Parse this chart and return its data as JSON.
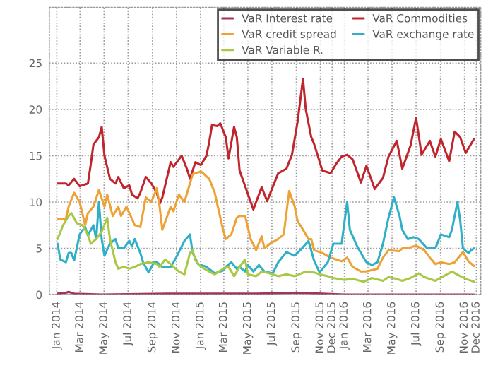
{
  "chart_data": {
    "type": "line",
    "xlim": [
      "2013-12-13",
      "2016-12-12"
    ],
    "xticks": [
      {
        "value": "2014-01",
        "label": "Jan 2014"
      },
      {
        "value": "2014-03",
        "label": "Mar 2014"
      },
      {
        "value": "2014-05",
        "label": "May 2014"
      },
      {
        "value": "2014-07",
        "label": "Jul 2014"
      },
      {
        "value": "2014-09",
        "label": "Sep 2014"
      },
      {
        "value": "2014-11",
        "label": "Nov 2014"
      },
      {
        "value": "2015-01",
        "label": "Jan 2015"
      },
      {
        "value": "2015-03",
        "label": "Mar 2015"
      },
      {
        "value": "2015-05",
        "label": "May 2015"
      },
      {
        "value": "2015-07",
        "label": "Jul 2015"
      },
      {
        "value": "2015-09",
        "label": "Sep 2015"
      },
      {
        "value": "2015-11",
        "label": "Nov 2015"
      },
      {
        "value": "2015-12",
        "label": "Dec 2015"
      },
      {
        "value": "2016-01",
        "label": "Jan 2016"
      },
      {
        "value": "2016-03",
        "label": "Mar 2016"
      },
      {
        "value": "2016-05",
        "label": "May 2016"
      },
      {
        "value": "2016-07",
        "label": "Jul 2016"
      },
      {
        "value": "2016-09",
        "label": "Sep 2016"
      },
      {
        "value": "2016-11",
        "label": "Nov 2016"
      },
      {
        "value": "2016-12",
        "label": "Dec 2016"
      }
    ],
    "ylim": [
      0,
      31
    ],
    "yticks": [
      0,
      5,
      10,
      15,
      20,
      25
    ],
    "grid": true,
    "legend": "top right",
    "marker": "none",
    "line_style": "solid",
    "series": [
      {
        "name": "VaR Interest rate",
        "color": "#a3325e",
        "x": [
          "2014-01-03",
          "2014-01-24",
          "2014-01-31",
          "2014-02-14",
          "2014-04-25",
          "2014-10-10",
          "2015-05-22",
          "2015-09-11",
          "2016-01-01",
          "2016-11-25"
        ],
        "values": [
          0.1,
          0.2,
          0.3,
          0.1,
          0,
          0.1,
          0.1,
          0.2,
          0,
          0
        ]
      },
      {
        "name": "VaR Commodities",
        "color": "#c0262d",
        "x": [
          "2014-01-03",
          "2014-01-24",
          "2014-01-31",
          "2014-02-14",
          "2014-02-28",
          "2014-03-21",
          "2014-03-28",
          "2014-04-04",
          "2014-04-18",
          "2014-04-25",
          "2014-05-02",
          "2014-05-16",
          "2014-05-30",
          "2014-06-06",
          "2014-06-20",
          "2014-07-04",
          "2014-07-11",
          "2014-07-25",
          "2014-08-01",
          "2014-08-15",
          "2014-08-29",
          "2014-09-12",
          "2014-09-19",
          "2014-09-26",
          "2014-10-17",
          "2014-10-24",
          "2014-11-14",
          "2014-11-28",
          "2014-12-05",
          "2014-12-19",
          "2015-01-02",
          "2015-01-16",
          "2015-01-23",
          "2015-01-30",
          "2015-02-13",
          "2015-02-20",
          "2015-03-06",
          "2015-03-13",
          "2015-03-27",
          "2015-04-03",
          "2015-04-10",
          "2015-05-15",
          "2015-06-05",
          "2015-06-19",
          "2015-07-17",
          "2015-08-07",
          "2015-08-21",
          "2015-09-04",
          "2015-09-18",
          "2015-09-25",
          "2015-10-09",
          "2015-10-16",
          "2015-11-06",
          "2015-11-27",
          "2015-12-11",
          "2015-12-25",
          "2016-01-08",
          "2016-01-22",
          "2016-02-12",
          "2016-02-26",
          "2016-03-18",
          "2016-04-08",
          "2016-04-22",
          "2016-05-13",
          "2016-05-27",
          "2016-06-17",
          "2016-07-01",
          "2016-07-15",
          "2016-08-05",
          "2016-08-19",
          "2016-09-02",
          "2016-09-23",
          "2016-10-07",
          "2016-10-21",
          "2016-11-04",
          "2016-11-11",
          "2016-11-25"
        ],
        "values": [
          12,
          12,
          11.8,
          12.5,
          11.7,
          12,
          14,
          16.2,
          17,
          18.1,
          15,
          12.5,
          12,
          12.7,
          11.5,
          11.8,
          10.8,
          10.4,
          11,
          12.7,
          12,
          11,
          9.8,
          10.5,
          14.3,
          13.8,
          15,
          13.5,
          12.5,
          14.3,
          14,
          15,
          16.5,
          18.3,
          18.2,
          18.5,
          17,
          14.7,
          18.1,
          17,
          13.4,
          9.2,
          11.6,
          10.1,
          13.1,
          13.6,
          15.1,
          18.6,
          23.3,
          20,
          17,
          16.3,
          13.4,
          13.1,
          14.1,
          14.9,
          15.1,
          14.6,
          12.1,
          13.9,
          11.4,
          12.6,
          14.9,
          16.6,
          13.6,
          16.1,
          19.1,
          15.1,
          16.6,
          14.9,
          16.8,
          14.4,
          17.6,
          17,
          15.3,
          15.8,
          16.8
        ]
      },
      {
        "name": "VaR credit spread",
        "color": "#eea236",
        "x": [
          "2014-01-03",
          "2014-01-24",
          "2014-01-31",
          "2014-02-14",
          "2014-02-28",
          "2014-03-14",
          "2014-03-21",
          "2014-04-04",
          "2014-04-18",
          "2014-05-02",
          "2014-05-09",
          "2014-05-23",
          "2014-06-06",
          "2014-06-13",
          "2014-06-27",
          "2014-07-18",
          "2014-08-01",
          "2014-08-15",
          "2014-08-29",
          "2014-09-12",
          "2014-09-19",
          "2014-09-26",
          "2014-10-17",
          "2014-10-24",
          "2014-11-07",
          "2014-11-21",
          "2014-12-05",
          "2014-12-12",
          "2015-01-02",
          "2015-01-23",
          "2015-02-06",
          "2015-02-27",
          "2015-03-06",
          "2015-03-20",
          "2015-04-03",
          "2015-04-10",
          "2015-04-24",
          "2015-05-08",
          "2015-05-22",
          "2015-06-05",
          "2015-06-12",
          "2015-06-26",
          "2015-07-17",
          "2015-07-31",
          "2015-08-14",
          "2015-08-28",
          "2015-09-04",
          "2015-09-18",
          "2015-10-02",
          "2015-10-09",
          "2015-10-16",
          "2015-11-06",
          "2015-11-27",
          "2015-12-11",
          "2015-12-25",
          "2016-01-08",
          "2016-01-22",
          "2016-02-12",
          "2016-02-26",
          "2016-03-25",
          "2016-04-08",
          "2016-04-22",
          "2016-05-20",
          "2016-05-27",
          "2016-06-17",
          "2016-07-01",
          "2016-07-22",
          "2016-08-05",
          "2016-08-19",
          "2016-09-02",
          "2016-09-23",
          "2016-10-07",
          "2016-10-28",
          "2016-11-11",
          "2016-11-25"
        ],
        "values": [
          8.2,
          8.2,
          9.5,
          11,
          10,
          7.5,
          8.8,
          9.5,
          11.3,
          9.5,
          10.8,
          8.5,
          9.5,
          8.5,
          9.5,
          7.5,
          7.3,
          10.5,
          10,
          11.5,
          9.5,
          7,
          9.5,
          9,
          10.8,
          10,
          12,
          13,
          13.3,
          12.5,
          11,
          7,
          6,
          6.5,
          8.3,
          8.5,
          8.5,
          6,
          4.8,
          6.3,
          5,
          5.5,
          6,
          6.5,
          11.2,
          9.5,
          8,
          7,
          6,
          6,
          4.8,
          4.5,
          4,
          3.8,
          3.6,
          4,
          3,
          2.5,
          2.5,
          2.8,
          4,
          4.8,
          4.7,
          5,
          5.1,
          5.3,
          4.8,
          4,
          3.3,
          3.5,
          3.3,
          3.5,
          4.6,
          3.6,
          3.1
        ]
      },
      {
        "name": "VaR exchange rate",
        "color": "#2fb0c6",
        "x": [
          "2014-01-03",
          "2014-01-10",
          "2014-01-24",
          "2014-01-31",
          "2014-02-07",
          "2014-02-14",
          "2014-02-28",
          "2014-03-14",
          "2014-03-21",
          "2014-04-04",
          "2014-04-11",
          "2014-04-18",
          "2014-04-25",
          "2014-05-02",
          "2014-05-16",
          "2014-05-30",
          "2014-06-06",
          "2014-06-20",
          "2014-07-04",
          "2014-07-11",
          "2014-07-18",
          "2014-08-01",
          "2014-08-08",
          "2014-08-22",
          "2014-09-05",
          "2014-09-12",
          "2014-09-26",
          "2014-10-17",
          "2014-10-31",
          "2014-11-21",
          "2014-12-05",
          "2014-12-12",
          "2014-12-26",
          "2015-01-16",
          "2015-02-06",
          "2015-02-27",
          "2015-03-06",
          "2015-03-20",
          "2015-04-03",
          "2015-04-10",
          "2015-04-24",
          "2015-05-01",
          "2015-05-15",
          "2015-05-29",
          "2015-06-12",
          "2015-07-03",
          "2015-07-17",
          "2015-08-07",
          "2015-08-28",
          "2015-09-11",
          "2015-10-02",
          "2015-10-16",
          "2015-10-30",
          "2015-11-20",
          "2015-12-04",
          "2015-12-25",
          "2016-01-08",
          "2016-01-15",
          "2016-02-05",
          "2016-02-26",
          "2016-03-11",
          "2016-03-25",
          "2016-04-08",
          "2016-04-22",
          "2016-05-06",
          "2016-05-20",
          "2016-05-27",
          "2016-06-10",
          "2016-06-24",
          "2016-07-08",
          "2016-07-29",
          "2016-08-19",
          "2016-09-02",
          "2016-09-23",
          "2016-09-30",
          "2016-10-14",
          "2016-10-21",
          "2016-10-28",
          "2016-11-11",
          "2016-11-18",
          "2016-11-25"
        ],
        "values": [
          5.5,
          3.8,
          3.5,
          4.5,
          4.5,
          3.7,
          6.5,
          7.3,
          6.4,
          7.5,
          6,
          10,
          6,
          4.2,
          5.5,
          6,
          5,
          5,
          5.8,
          5.2,
          6,
          4.5,
          3.5,
          2.4,
          3.5,
          3.5,
          3,
          3,
          4,
          5.8,
          6.5,
          4.5,
          3.3,
          3,
          2.3,
          2.6,
          3,
          3.5,
          2.8,
          3,
          2.5,
          3.2,
          2.5,
          3.2,
          2.5,
          2.3,
          3.5,
          4.6,
          4.2,
          4.8,
          5.8,
          3.7,
          2.4,
          3.5,
          5.5,
          5.5,
          10,
          7,
          5,
          3.5,
          3.2,
          3.5,
          5.5,
          8.3,
          10.5,
          8.5,
          7,
          6,
          6.2,
          6,
          5,
          5,
          6.5,
          6.2,
          7,
          10,
          8,
          5,
          4.5,
          4.8,
          5
        ]
      },
      {
        "name": "VaR Variable R.",
        "color": "#a9c845",
        "x": [
          "2014-01-03",
          "2014-01-17",
          "2014-01-31",
          "2014-02-07",
          "2014-02-21",
          "2014-03-07",
          "2014-03-21",
          "2014-03-28",
          "2014-04-11",
          "2014-04-25",
          "2014-05-09",
          "2014-05-16",
          "2014-05-30",
          "2014-06-06",
          "2014-06-20",
          "2014-07-04",
          "2014-07-18",
          "2014-08-01",
          "2014-08-22",
          "2014-09-12",
          "2014-09-19",
          "2014-10-03",
          "2014-10-17",
          "2014-10-24",
          "2014-11-07",
          "2014-11-21",
          "2014-12-05",
          "2014-12-12",
          "2014-12-19",
          "2015-01-02",
          "2015-01-23",
          "2015-02-06",
          "2015-02-27",
          "2015-03-13",
          "2015-03-27",
          "2015-04-10",
          "2015-04-24",
          "2015-05-01",
          "2015-05-22",
          "2015-06-05",
          "2015-06-26",
          "2015-07-17",
          "2015-08-07",
          "2015-08-28",
          "2015-09-25",
          "2015-10-16",
          "2015-10-30",
          "2015-11-20",
          "2015-12-04",
          "2016-01-01",
          "2016-01-22",
          "2016-02-19",
          "2016-03-11",
          "2016-04-08",
          "2016-04-22",
          "2016-05-13",
          "2016-05-27",
          "2016-06-17",
          "2016-07-08",
          "2016-07-22",
          "2016-08-19",
          "2016-09-09",
          "2016-09-30",
          "2016-10-21",
          "2016-11-11",
          "2016-11-25"
        ],
        "values": [
          6,
          7.5,
          8.5,
          8.8,
          7.7,
          7.5,
          6.5,
          5.5,
          6,
          6.8,
          8.3,
          6,
          3.5,
          2.8,
          3,
          2.8,
          3,
          3.3,
          3.5,
          3.3,
          3,
          3.8,
          3.3,
          3,
          2.5,
          2.2,
          4.5,
          4.8,
          3.7,
          3,
          2.5,
          2.2,
          2.8,
          3,
          2,
          3,
          3.8,
          2.2,
          2,
          2.5,
          2.3,
          2,
          2.2,
          2,
          2.5,
          2.4,
          2.2,
          2,
          1.8,
          1.6,
          1.7,
          1.4,
          1.8,
          1.5,
          1.9,
          1.7,
          1.5,
          1.8,
          2.3,
          1.9,
          1.5,
          2,
          2.5,
          2,
          1.6,
          1.4
        ]
      }
    ]
  }
}
